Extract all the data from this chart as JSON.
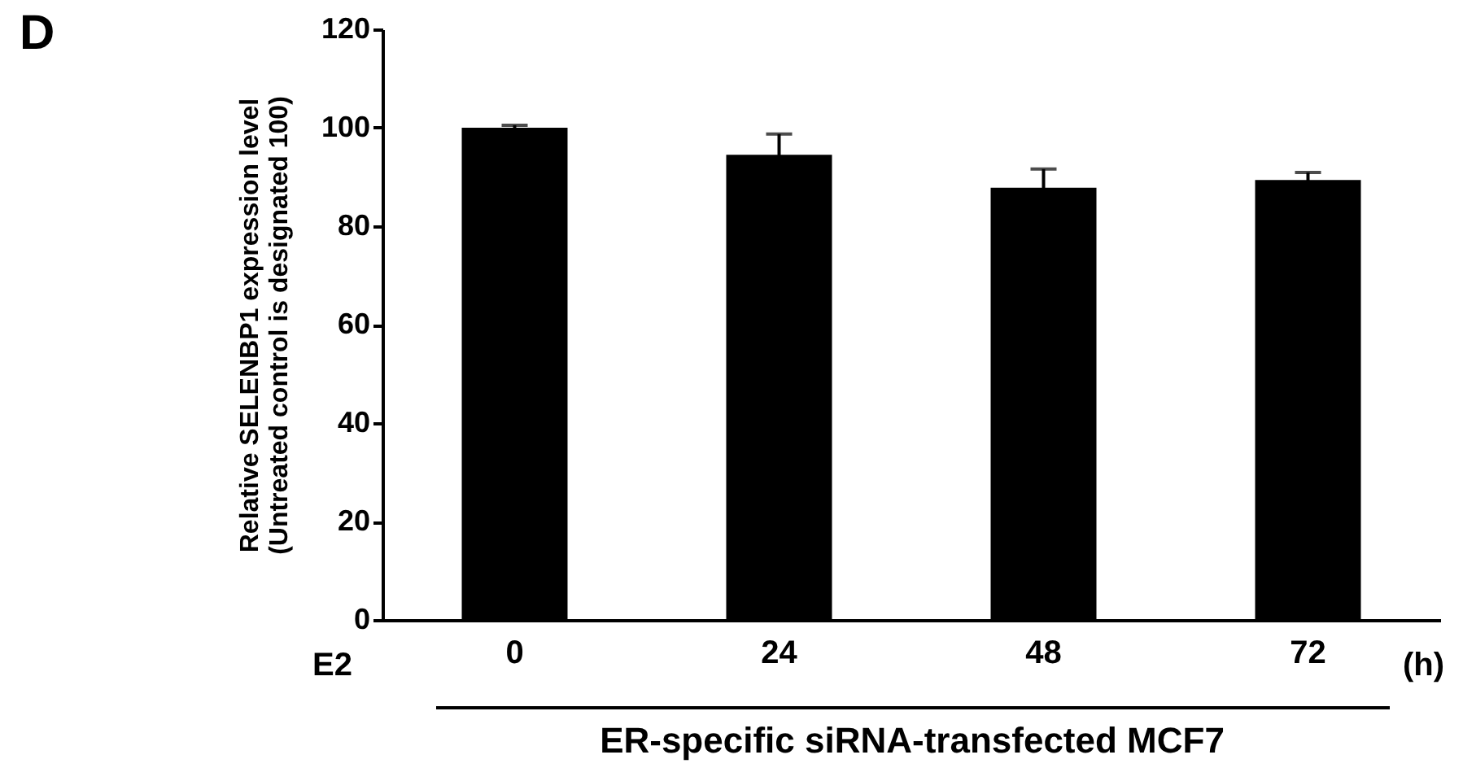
{
  "chart_data": {
    "type": "bar",
    "xlabel": "ER-specific siRNA-transfected MCF7",
    "ylabel": "Relative SELENBP1 expression level\n(Untreated control is designated 100)",
    "categories": [
      "0",
      "24",
      "48",
      "72"
    ],
    "series": [
      {
        "color": "#000000",
        "values": [
          100,
          94.5,
          87.8,
          89.4
        ],
        "errors": [
          0.5,
          4.2,
          3.8,
          1.5
        ]
      }
    ],
    "ylim": [
      0,
      120
    ],
    "yticks": [
      0,
      20,
      40,
      60,
      80,
      100,
      120
    ],
    "grid": false,
    "annotations": [
      "D",
      "E2",
      "(h)"
    ]
  }
}
